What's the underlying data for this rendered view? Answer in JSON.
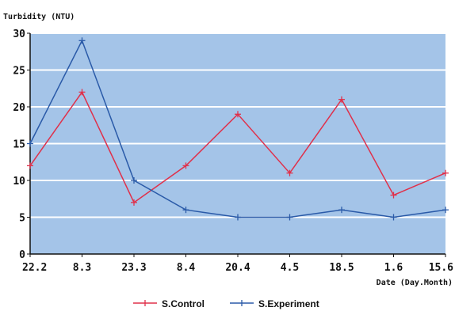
{
  "chart_data": {
    "type": "line",
    "ylabel": "Turbidity (NTU)",
    "xlabel": "Date (Day.Month)",
    "categories": [
      "22.2",
      "8.3",
      "23.3",
      "8.4",
      "20.4",
      "4.5",
      "18.5",
      "1.6",
      "15.6"
    ],
    "ylim": [
      0,
      30
    ],
    "yticks": [
      0,
      5,
      10,
      15,
      20,
      25,
      30
    ],
    "grid": true,
    "legend_position": "bottom",
    "series": [
      {
        "name": "S.Control",
        "color": "#e0304a",
        "values": [
          12,
          22,
          7,
          12,
          19,
          11,
          21,
          8,
          11
        ]
      },
      {
        "name": "S.Experiment",
        "color": "#2a5aa8",
        "values": [
          15,
          29,
          10,
          6,
          5,
          5,
          6,
          5,
          6
        ]
      }
    ],
    "plot_bg": "#a4c4e8",
    "grid_color": "#ffffff"
  }
}
